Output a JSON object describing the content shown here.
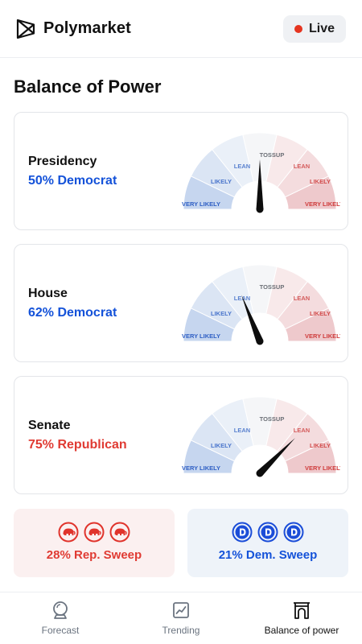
{
  "header": {
    "brand": "Polymarket",
    "live_label": "Live"
  },
  "page_title": "Balance of Power",
  "gauge_labels": {
    "tossup": "TOSSUP",
    "lean": "LEAN",
    "likely": "LIKELY",
    "very_likely": "VERY LIKELY"
  },
  "races": [
    {
      "name": "Presidency",
      "value_text": "50% Democrat",
      "party": "dem",
      "probability": 50
    },
    {
      "name": "House",
      "value_text": "62% Democrat",
      "party": "dem",
      "probability": 62
    },
    {
      "name": "Senate",
      "value_text": "75% Republican",
      "party": "rep",
      "probability": 75
    }
  ],
  "sweeps": {
    "rep": {
      "label": "28% Rep. Sweep",
      "icon": "elephant-icon"
    },
    "dem": {
      "label": "21% Dem. Sweep",
      "icon": "donkey-d-icon"
    }
  },
  "nav": {
    "forecast": "Forecast",
    "trending": "Trending",
    "balance": "Balance of power",
    "active": "balance"
  },
  "colors": {
    "dem_text": "#1452d9",
    "rep_text": "#e03b33",
    "dem_accent": "#1b4dd8",
    "rep_accent": "#e0342c",
    "dem_sweep_bg": "#eef3f9",
    "rep_sweep_bg": "#fbf0f0",
    "nav_active": "#111111",
    "nav_inactive": "#6b7480"
  }
}
